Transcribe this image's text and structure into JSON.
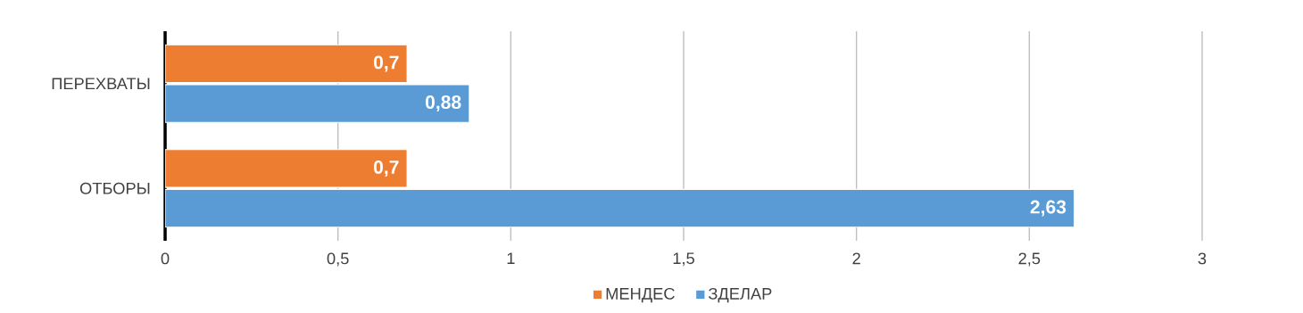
{
  "chart_data": {
    "type": "bar",
    "orientation": "horizontal",
    "categories": [
      "ПЕРЕХВАТЫ",
      "ОТБОРЫ"
    ],
    "series": [
      {
        "name": "МЕНДЕС",
        "color": "#ed7d31",
        "values": [
          0.7,
          0.7
        ],
        "value_labels": [
          "0,7",
          "0,7"
        ]
      },
      {
        "name": "ЗДЕЛАР",
        "color": "#5b9bd5",
        "values": [
          0.88,
          2.63
        ],
        "value_labels": [
          "0,88",
          "2,63"
        ]
      }
    ],
    "xlim": [
      0,
      3
    ],
    "xticks": [
      0,
      {
        "value": 0.5,
        "label": "0,5"
      },
      1,
      {
        "value": 1.5,
        "label": "1,5"
      },
      2,
      {
        "value": 2.5,
        "label": "2,5"
      },
      3
    ],
    "grid": "x",
    "legend": "bottom"
  }
}
